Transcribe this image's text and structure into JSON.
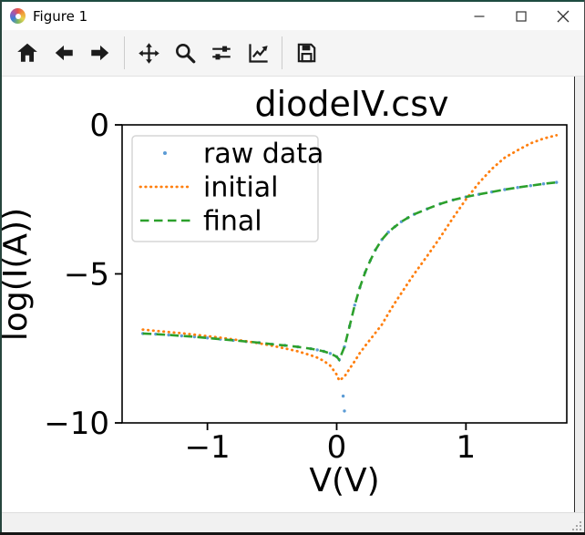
{
  "window": {
    "title": "Figure 1",
    "icon": "matplotlib-logo-icon",
    "controls": [
      {
        "name": "minimize",
        "icon": "minimize-icon"
      },
      {
        "name": "maximize",
        "icon": "maximize-icon"
      },
      {
        "name": "close",
        "icon": "close-icon"
      }
    ]
  },
  "toolbar": {
    "buttons": [
      {
        "icon": "home-icon",
        "action": "home"
      },
      {
        "icon": "back-arrow-icon",
        "action": "back"
      },
      {
        "icon": "forward-arrow-icon",
        "action": "forward"
      },
      {
        "icon": "pan-icon",
        "action": "pan"
      },
      {
        "icon": "zoom-to-rect-icon",
        "action": "zoom"
      },
      {
        "icon": "subplots-config-icon",
        "action": "configure-subplots"
      },
      {
        "icon": "edit-axis-icon",
        "action": "edit-parameters"
      },
      {
        "icon": "save-icon",
        "action": "save"
      }
    ]
  },
  "statusbar": {
    "text": "",
    "grip": "resize-grip-icon"
  },
  "chart_data": {
    "type": "line",
    "title": "diodeIV.csv",
    "xlabel": "V(V)",
    "ylabel": "log(I(A))",
    "xlim": [
      -1.66,
      1.78
    ],
    "ylim": [
      -10,
      0
    ],
    "xticks": [
      -1,
      0,
      1
    ],
    "yticks": [
      0,
      -5,
      -10
    ],
    "grid": false,
    "legend_position": "upper left",
    "axes_color": "#000000",
    "series": [
      {
        "name": "raw data",
        "type": "scatter",
        "marker": "point",
        "color": "#5b9bd5",
        "x": [
          -1.5,
          -1.4,
          -1.3,
          -1.2,
          -1.1,
          -1.0,
          -0.9,
          -0.8,
          -0.7,
          -0.6,
          -0.5,
          -0.4,
          -0.3,
          -0.2,
          -0.15,
          -0.1,
          -0.05,
          0.0,
          0.02,
          0.06,
          0.1,
          0.14,
          0.18,
          0.22,
          0.26,
          0.3,
          0.35,
          0.4,
          0.45,
          0.5,
          0.55,
          0.6,
          0.7,
          0.8,
          0.9,
          1.0,
          1.1,
          1.2,
          1.3,
          1.4,
          1.5,
          1.6,
          1.7,
          0.05,
          0.06
        ],
        "y": [
          -7.0,
          -7.02,
          -7.05,
          -7.08,
          -7.11,
          -7.15,
          -7.19,
          -7.23,
          -7.27,
          -7.31,
          -7.36,
          -7.4,
          -7.45,
          -7.51,
          -7.55,
          -7.6,
          -7.67,
          -7.78,
          -7.88,
          -7.45,
          -6.75,
          -6.05,
          -5.45,
          -4.95,
          -4.55,
          -4.2,
          -3.85,
          -3.6,
          -3.42,
          -3.25,
          -3.12,
          -3.0,
          -2.82,
          -2.65,
          -2.52,
          -2.42,
          -2.33,
          -2.25,
          -2.17,
          -2.1,
          -2.04,
          -1.98,
          -1.93,
          -9.1,
          -9.6
        ]
      },
      {
        "name": "initial",
        "type": "line",
        "linestyle": "dotted",
        "color": "#ff7f0e",
        "x": [
          -1.5,
          -1.4,
          -1.3,
          -1.2,
          -1.1,
          -1.0,
          -0.9,
          -0.8,
          -0.7,
          -0.6,
          -0.5,
          -0.4,
          -0.3,
          -0.2,
          -0.15,
          -0.1,
          -0.05,
          0.0,
          0.02,
          0.06,
          0.1,
          0.14,
          0.18,
          0.22,
          0.26,
          0.3,
          0.35,
          0.4,
          0.45,
          0.5,
          0.55,
          0.6,
          0.7,
          0.8,
          0.9,
          1.0,
          1.1,
          1.2,
          1.3,
          1.4,
          1.5,
          1.6,
          1.7
        ],
        "y": [
          -6.87,
          -6.91,
          -6.95,
          -6.99,
          -7.04,
          -7.09,
          -7.14,
          -7.2,
          -7.26,
          -7.33,
          -7.41,
          -7.5,
          -7.6,
          -7.73,
          -7.81,
          -7.92,
          -8.08,
          -8.38,
          -8.58,
          -8.45,
          -8.18,
          -7.93,
          -7.65,
          -7.42,
          -7.2,
          -6.98,
          -6.7,
          -6.33,
          -5.98,
          -5.65,
          -5.32,
          -5.0,
          -4.4,
          -3.78,
          -3.12,
          -2.5,
          -1.95,
          -1.48,
          -1.1,
          -0.85,
          -0.62,
          -0.46,
          -0.35
        ]
      },
      {
        "name": "final",
        "type": "line",
        "linestyle": "dashed",
        "color": "#2ca02c",
        "x": [
          -1.5,
          -1.4,
          -1.3,
          -1.2,
          -1.1,
          -1.0,
          -0.9,
          -0.8,
          -0.7,
          -0.6,
          -0.5,
          -0.4,
          -0.3,
          -0.2,
          -0.15,
          -0.1,
          -0.05,
          0.0,
          0.02,
          0.06,
          0.1,
          0.14,
          0.18,
          0.22,
          0.26,
          0.3,
          0.35,
          0.4,
          0.45,
          0.5,
          0.55,
          0.6,
          0.7,
          0.8,
          0.9,
          1.0,
          1.1,
          1.2,
          1.3,
          1.4,
          1.5,
          1.6,
          1.7
        ],
        "y": [
          -7.0,
          -7.02,
          -7.05,
          -7.08,
          -7.11,
          -7.15,
          -7.19,
          -7.23,
          -7.27,
          -7.31,
          -7.36,
          -7.4,
          -7.45,
          -7.51,
          -7.55,
          -7.6,
          -7.67,
          -7.78,
          -7.88,
          -7.45,
          -6.75,
          -6.05,
          -5.45,
          -4.95,
          -4.55,
          -4.2,
          -3.85,
          -3.6,
          -3.42,
          -3.25,
          -3.12,
          -3.0,
          -2.82,
          -2.65,
          -2.52,
          -2.42,
          -2.33,
          -2.25,
          -2.17,
          -2.1,
          -2.04,
          -1.98,
          -1.93
        ]
      }
    ]
  }
}
